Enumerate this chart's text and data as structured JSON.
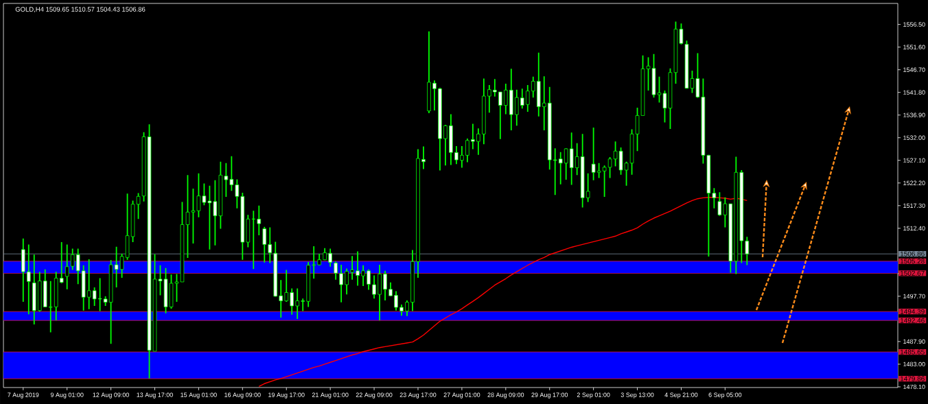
{
  "chart_data": {
    "type": "candlestick",
    "title": "GOLD,H4  1509.65 1510.57 1504.43 1506.86",
    "categories": [
      "7 Aug 2019",
      null,
      null,
      null,
      null,
      null,
      null,
      null,
      "9 Aug 01:00",
      null,
      null,
      null,
      null,
      null,
      null,
      null,
      "12 Aug 09:00",
      null,
      null,
      null,
      null,
      null,
      null,
      null,
      "13 Aug 17:00",
      null,
      null,
      null,
      null,
      null,
      null,
      null,
      "15 Aug 01:00",
      null,
      null,
      null,
      null,
      null,
      null,
      null,
      "16 Aug 09:00",
      null,
      null,
      null,
      null,
      null,
      null,
      null,
      "19 Aug 17:00",
      null,
      null,
      null,
      null,
      null,
      null,
      null,
      "21 Aug 01:00",
      null,
      null,
      null,
      null,
      null,
      null,
      null,
      "22 Aug 09:00",
      null,
      null,
      null,
      null,
      null,
      null,
      null,
      "23 Aug 17:00",
      null,
      null,
      null,
      null,
      null,
      null,
      null,
      "27 Aug 01:00",
      null,
      null,
      null,
      null,
      null,
      null,
      null,
      "28 Aug 09:00",
      null,
      null,
      null,
      null,
      null,
      null,
      null,
      "29 Aug 17:00",
      null,
      null,
      null,
      null,
      null,
      null,
      null,
      "2 Sep 01:00",
      null,
      null,
      null,
      null,
      null,
      null,
      null,
      "3 Sep 13:00",
      null,
      null,
      null,
      null,
      null,
      null,
      null,
      "4 Sep 21:00",
      null,
      null,
      null,
      null,
      null,
      null,
      null,
      "6 Sep 05:00",
      null,
      null,
      null,
      null
    ],
    "color": "#00ff00",
    "ohlc": [
      [
        1507.8,
        1510.2,
        1496.5,
        1503.0
      ],
      [
        1503.0,
        1508.9,
        1493.8,
        1500.9
      ],
      [
        1500.6,
        1506.7,
        1491.6,
        1494.6
      ],
      [
        1494.6,
        1503.0,
        1494.4,
        1501.0
      ],
      [
        1501.0,
        1503.5,
        1495.3,
        1495.4
      ],
      [
        1495.3,
        1501.0,
        1489.9,
        1495.4
      ],
      [
        1495.4,
        1503.0,
        1492.5,
        1501.6
      ],
      [
        1501.6,
        1509.4,
        1500.5,
        1500.7
      ],
      [
        1502.0,
        1508.9,
        1499.2,
        1504.1
      ],
      [
        1504.2,
        1508.0,
        1503.4,
        1506.7
      ],
      [
        1506.7,
        1508.0,
        1500.3,
        1503.2
      ],
      [
        1503.2,
        1504.4,
        1494.6,
        1497.5
      ],
      [
        1497.5,
        1505.7,
        1494.9,
        1498.9
      ],
      [
        1498.9,
        1499.6,
        1495.6,
        1497.1
      ],
      [
        1497.2,
        1501.6,
        1494.5,
        1497.1
      ],
      [
        1497.1,
        1497.7,
        1495.6,
        1496.4
      ],
      [
        1496.4,
        1505.5,
        1487.4,
        1504.5
      ],
      [
        1504.5,
        1508.4,
        1499.6,
        1503.5
      ],
      [
        1503.5,
        1506.9,
        1501.7,
        1506.3
      ],
      [
        1506.1,
        1519.9,
        1505.6,
        1510.8
      ],
      [
        1510.6,
        1518.4,
        1509.4,
        1517.6
      ],
      [
        1517.6,
        1520.0,
        1514.4,
        1519.3
      ],
      [
        1519.4,
        1533.2,
        1518.2,
        1532.2
      ],
      [
        1532.2,
        1534.9,
        1479.9,
        1486.0
      ],
      [
        1485.8,
        1506.8,
        1485.8,
        1501.4
      ],
      [
        1501.4,
        1504.4,
        1497.9,
        1501.0
      ],
      [
        1501.4,
        1503.8,
        1494.0,
        1495.4
      ],
      [
        1495.4,
        1502.4,
        1495.0,
        1500.5
      ],
      [
        1500.5,
        1502.5,
        1496.5,
        1500.8
      ],
      [
        1500.8,
        1518.1,
        1500.8,
        1513.2
      ],
      [
        1513.2,
        1523.9,
        1506.0,
        1515.9
      ],
      [
        1515.9,
        1521.0,
        1509.1,
        1516.2
      ],
      [
        1516.2,
        1524.3,
        1514.8,
        1519.4
      ],
      [
        1519.4,
        1522.1,
        1517.4,
        1518.0
      ],
      [
        1518.3,
        1521.6,
        1507.8,
        1517.9
      ],
      [
        1518.2,
        1522.8,
        1508.7,
        1515.1
      ],
      [
        1515.1,
        1526.8,
        1512.3,
        1523.9
      ],
      [
        1523.7,
        1526.5,
        1519.2,
        1522.9
      ],
      [
        1523.0,
        1528.0,
        1520.5,
        1521.8
      ],
      [
        1521.8,
        1523.0,
        1516.7,
        1519.3
      ],
      [
        1519.3,
        1520.1,
        1505.6,
        1509.4
      ],
      [
        1509.4,
        1515.3,
        1508.3,
        1514.4
      ],
      [
        1514.4,
        1516.2,
        1503.6,
        1514.4
      ],
      [
        1514.4,
        1517.3,
        1510.9,
        1513.4
      ],
      [
        1512.3,
        1512.7,
        1505.0,
        1508.9
      ],
      [
        1508.9,
        1512.6,
        1504.9,
        1507.1
      ],
      [
        1507.0,
        1509.5,
        1497.6,
        1497.7
      ],
      [
        1497.8,
        1501.2,
        1493.1,
        1496.7
      ],
      [
        1496.7,
        1503.4,
        1496.5,
        1498.5
      ],
      [
        1498.5,
        1499.4,
        1493.7,
        1495.6
      ],
      [
        1495.6,
        1499.4,
        1492.8,
        1496.7
      ],
      [
        1496.7,
        1497.2,
        1494.5,
        1496.6
      ],
      [
        1496.6,
        1505.1,
        1495.4,
        1504.4
      ],
      [
        1504.4,
        1508.5,
        1501.5,
        1504.5
      ],
      [
        1504.5,
        1506.9,
        1504.4,
        1505.6
      ],
      [
        1505.6,
        1508.1,
        1505.5,
        1507.1
      ],
      [
        1507.0,
        1508.0,
        1504.1,
        1505.0
      ],
      [
        1504.9,
        1505.2,
        1501.3,
        1502.7
      ],
      [
        1502.6,
        1504.5,
        1496.4,
        1500.2
      ],
      [
        1500.2,
        1503.7,
        1498.1,
        1503.1
      ],
      [
        1502.9,
        1506.4,
        1501.3,
        1503.4
      ],
      [
        1503.2,
        1507.4,
        1500.0,
        1502.2
      ],
      [
        1502.1,
        1504.4,
        1499.9,
        1503.2
      ],
      [
        1503.2,
        1503.5,
        1499.1,
        1500.3
      ],
      [
        1500.2,
        1502.2,
        1497.2,
        1498.1
      ],
      [
        1498.1,
        1504.5,
        1492.5,
        1502.5
      ],
      [
        1502.5,
        1503.2,
        1496.8,
        1499.2
      ],
      [
        1499.2,
        1500.7,
        1497.7,
        1497.8
      ],
      [
        1497.9,
        1498.8,
        1494.6,
        1495.3
      ],
      [
        1495.3,
        1495.9,
        1493.5,
        1494.5
      ],
      [
        1494.5,
        1496.8,
        1493.4,
        1496.4
      ],
      [
        1496.4,
        1507.7,
        1494.5,
        1505.2
      ],
      [
        1505.2,
        1529.5,
        1501.7,
        1527.5
      ],
      [
        1527.3,
        1530.1,
        1525.2,
        1526.8
      ],
      [
        1537.8,
        1555.0,
        1537.3,
        1544.0
      ],
      [
        1543.8,
        1544.4,
        1537.9,
        1542.6
      ],
      [
        1542.6,
        1542.8,
        1524.9,
        1531.8
      ],
      [
        1531.8,
        1534.8,
        1526.0,
        1534.6
      ],
      [
        1534.6,
        1537.1,
        1526.1,
        1528.8
      ],
      [
        1528.8,
        1530.2,
        1526.3,
        1527.2
      ],
      [
        1527.1,
        1530.2,
        1525.5,
        1528.2
      ],
      [
        1528.2,
        1531.8,
        1526.7,
        1531.4
      ],
      [
        1531.6,
        1535.0,
        1529.5,
        1531.2
      ],
      [
        1531.2,
        1534.0,
        1528.3,
        1532.8
      ],
      [
        1532.8,
        1544.8,
        1530.6,
        1541.0
      ],
      [
        1541.0,
        1543.4,
        1537.4,
        1542.4
      ],
      [
        1542.3,
        1544.7,
        1540.9,
        1541.9
      ],
      [
        1541.9,
        1541.9,
        1531.7,
        1539.0
      ],
      [
        1539.0,
        1543.7,
        1537.1,
        1542.3
      ],
      [
        1542.3,
        1546.9,
        1533.6,
        1537.0
      ],
      [
        1537.0,
        1542.4,
        1534.6,
        1540.7
      ],
      [
        1540.6,
        1542.6,
        1538.3,
        1539.0
      ],
      [
        1539.2,
        1543.4,
        1537.6,
        1542.1
      ],
      [
        1542.1,
        1545.2,
        1540.7,
        1544.2
      ],
      [
        1544.2,
        1550.4,
        1536.6,
        1538.7
      ],
      [
        1538.7,
        1545.3,
        1533.6,
        1539.5
      ],
      [
        1539.5,
        1543.0,
        1525.1,
        1527.2
      ],
      [
        1527.2,
        1529.7,
        1519.6,
        1527.1
      ],
      [
        1527.4,
        1528.9,
        1521.9,
        1526.5
      ],
      [
        1526.5,
        1529.7,
        1522.9,
        1529.6
      ],
      [
        1529.6,
        1533.1,
        1521.8,
        1525.5
      ],
      [
        1525.5,
        1530.8,
        1523.9,
        1527.9
      ],
      [
        1527.9,
        1532.8,
        1516.9,
        1519.0
      ],
      [
        1519.0,
        1524.3,
        1518.1,
        1520.4
      ],
      [
        1526.3,
        1534.2,
        1522.8,
        1524.5
      ],
      [
        1524.5,
        1526.5,
        1523.3,
        1524.8
      ],
      [
        1524.8,
        1526.0,
        1519.2,
        1525.6
      ],
      [
        1525.6,
        1527.8,
        1523.3,
        1527.4
      ],
      [
        1527.4,
        1531.2,
        1525.8,
        1529.1
      ],
      [
        1529.1,
        1529.9,
        1524.0,
        1525.0
      ],
      [
        1525.0,
        1526.8,
        1521.6,
        1526.5
      ],
      [
        1526.5,
        1533.8,
        1524.0,
        1532.8
      ],
      [
        1532.8,
        1538.5,
        1529.1,
        1536.8
      ],
      [
        1536.8,
        1549.8,
        1536.8,
        1546.9
      ],
      [
        1546.9,
        1549.4,
        1542.2,
        1547.5
      ],
      [
        1547.0,
        1550.1,
        1540.7,
        1541.3
      ],
      [
        1541.3,
        1545.2,
        1539.6,
        1541.7
      ],
      [
        1541.6,
        1542.2,
        1535.3,
        1538.4
      ],
      [
        1538.4,
        1547.0,
        1533.9,
        1546.1
      ],
      [
        1546.1,
        1557.1,
        1543.7,
        1555.5
      ],
      [
        1555.5,
        1556.7,
        1552.2,
        1552.4
      ],
      [
        1552.2,
        1553.0,
        1542.6,
        1542.7
      ],
      [
        1542.7,
        1546.5,
        1541.7,
        1544.8
      ],
      [
        1544.8,
        1550.3,
        1540.6,
        1540.8
      ],
      [
        1540.8,
        1544.8,
        1526.4,
        1528.2
      ],
      [
        1528.2,
        1528.3,
        1506.3,
        1520.0
      ],
      [
        1520.0,
        1521.1,
        1516.7,
        1519.0
      ],
      [
        1518.2,
        1520.2,
        1515.1,
        1515.3
      ],
      [
        1515.3,
        1519.1,
        1512.6,
        1517.7
      ],
      [
        1517.7,
        1517.7,
        1502.8,
        1505.3
      ],
      [
        1505.3,
        1527.9,
        1502.5,
        1524.5
      ],
      [
        1524.5,
        1525.0,
        1504.9,
        1509.7
      ],
      [
        1509.65,
        1510.57,
        1504.43,
        1506.86
      ]
    ],
    "series": [
      {
        "type": "line",
        "color": "#ff0000",
        "values": [
          null,
          null,
          null,
          null,
          null,
          null,
          null,
          null,
          null,
          null,
          null,
          null,
          null,
          null,
          null,
          null,
          null,
          null,
          null,
          null,
          null,
          null,
          null,
          null,
          null,
          null,
          null,
          null,
          null,
          null,
          null,
          null,
          null,
          null,
          null,
          null,
          null,
          null,
          null,
          null,
          null,
          null,
          null,
          1478.2,
          1478.8,
          1479.2,
          1479.6,
          1479.9,
          1480.3,
          1480.7,
          1481.1,
          1481.5,
          1481.9,
          1482.3,
          1482.6,
          1483.0,
          1483.4,
          1483.8,
          1484.2,
          1484.6,
          1485.0,
          1485.3,
          1485.7,
          1486.0,
          1486.3,
          1486.6,
          1486.8,
          1487.0,
          1487.2,
          1487.4,
          1487.6,
          1487.8,
          1488.5,
          1489.3,
          1490.3,
          1491.3,
          1492.3,
          1493.0,
          1493.7,
          1494.3,
          1495.0,
          1495.8,
          1496.6,
          1497.4,
          1498.3,
          1499.2,
          1500.1,
          1500.8,
          1501.5,
          1502.3,
          1503.0,
          1503.7,
          1504.4,
          1505.0,
          1505.6,
          1506.1,
          1506.7,
          1507.1,
          1507.5,
          1507.9,
          1508.3,
          1508.6,
          1508.9,
          1509.2,
          1509.5,
          1509.8,
          1510.1,
          1510.4,
          1510.7,
          1511.2,
          1511.6,
          1512.0,
          1512.5,
          1513.3,
          1514.0,
          1514.6,
          1515.1,
          1515.6,
          1516.1,
          1516.7,
          1517.3,
          1517.9,
          1518.4,
          1518.8,
          1519.0,
          1519.1,
          1519.1,
          1519.0,
          1518.9,
          1518.7,
          1518.9,
          1518.7,
          1518.4
        ]
      }
    ],
    "ylim": [
      1477.95,
      1561.05
    ],
    "yticks": [
      {
        "value": 1556.5,
        "label": "1556.50"
      },
      {
        "value": 1551.6,
        "label": "1551.60"
      },
      {
        "value": 1546.7,
        "label": "1546.70"
      },
      {
        "value": 1541.8,
        "label": "1541.80"
      },
      {
        "value": 1536.9,
        "label": "1536.90"
      },
      {
        "value": 1532.0,
        "label": "1532.00"
      },
      {
        "value": 1527.1,
        "label": "1527.10"
      },
      {
        "value": 1522.2,
        "label": "1522.20"
      },
      {
        "value": 1517.3,
        "label": "1517.30"
      },
      {
        "value": 1512.4,
        "label": "1512.40"
      },
      {
        "value": 1502.6,
        "label": null
      },
      {
        "value": 1497.7,
        "label": "1497.70"
      },
      {
        "value": 1487.9,
        "label": "1487.90"
      },
      {
        "value": 1483.0,
        "label": "1483.00"
      },
      {
        "value": 1478.1,
        "label": "1478.10"
      }
    ],
    "bands": [
      {
        "axis": "y",
        "from": 1502.67,
        "to": 1505.28,
        "color": "#0000ff"
      },
      {
        "axis": "y",
        "from": 1492.46,
        "to": 1494.39,
        "color": "#0000ff"
      },
      {
        "axis": "y",
        "from": 1479.86,
        "to": 1485.65,
        "color": "#0000ff"
      }
    ],
    "ref_lines": [
      {
        "axis": "y",
        "value": 1506.86,
        "label": "1506.86",
        "color": "#778899"
      },
      {
        "axis": "y",
        "value": 1505.28,
        "label": "1505.28",
        "color": "#dc143c"
      },
      {
        "axis": "y",
        "value": 1502.67,
        "label": "1502.67",
        "color": "#dc143c"
      },
      {
        "axis": "y",
        "value": 1494.39,
        "label": "1494.39",
        "color": "#dc143c"
      },
      {
        "axis": "y",
        "value": 1492.46,
        "label": "1492.46",
        "color": "#dc143c"
      },
      {
        "axis": "y",
        "value": 1485.65,
        "label": "1485.65",
        "color": "#dc143c"
      },
      {
        "axis": "y",
        "value": 1479.86,
        "label": "1479.86",
        "color": "#dc143c"
      }
    ]
  }
}
